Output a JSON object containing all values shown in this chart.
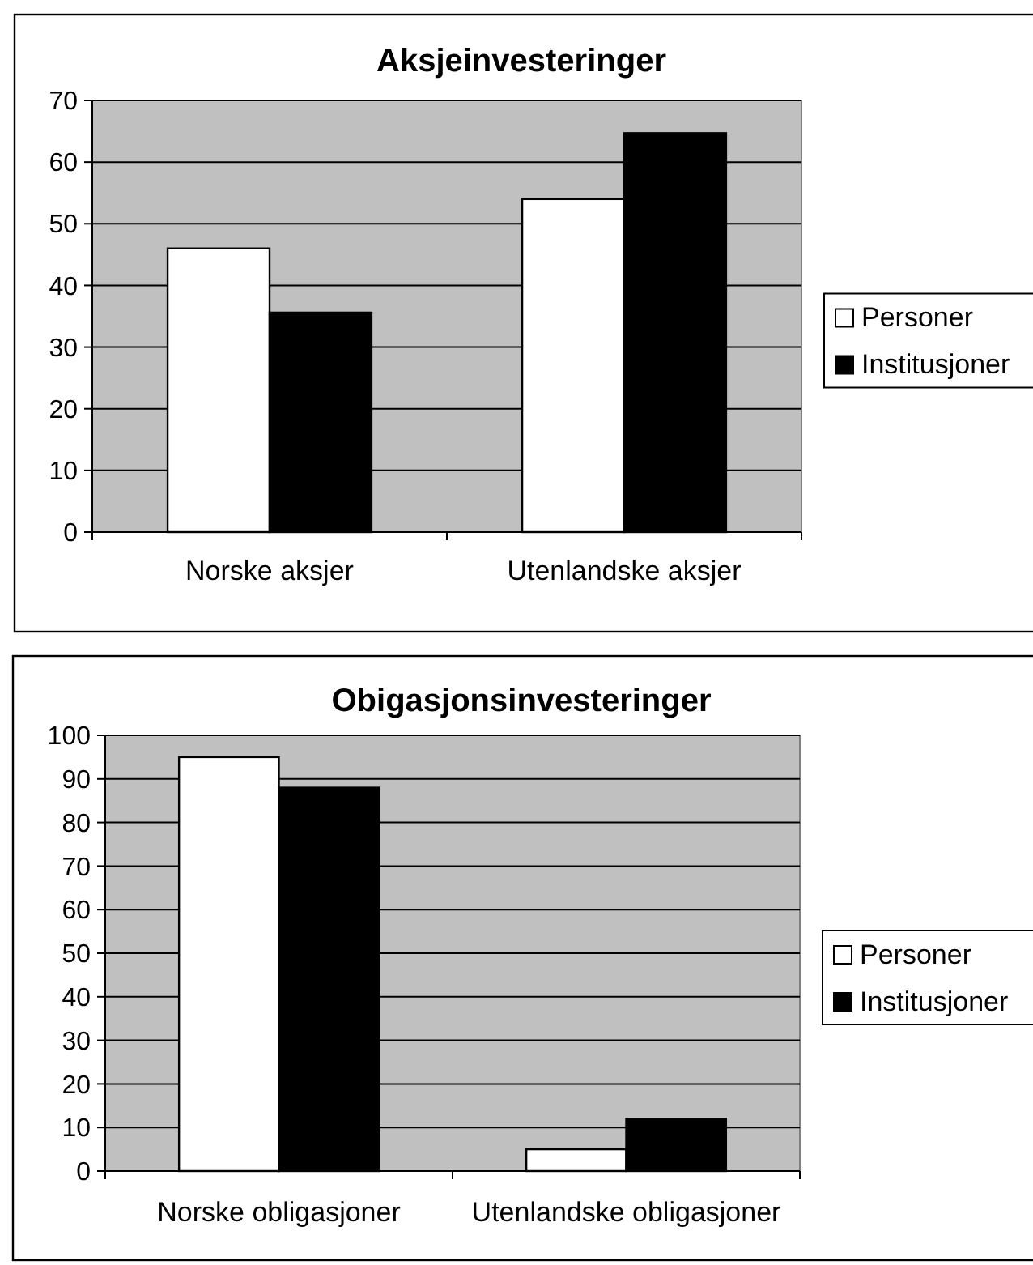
{
  "chart_data": [
    {
      "type": "bar",
      "title": "Aksjeinvesteringer",
      "categories": [
        "Norske aksjer",
        "Utenlandske aksjer"
      ],
      "series": [
        {
          "name": "Personer",
          "color": "#ffffff",
          "values": [
            46,
            54
          ]
        },
        {
          "name": "Institusjoner",
          "color": "#000000",
          "values": [
            35.6,
            64.7
          ]
        }
      ],
      "ylim": [
        0,
        70
      ],
      "yticks": [
        0,
        10,
        20,
        30,
        40,
        50,
        60,
        70
      ],
      "grid": "y",
      "legend": "right"
    },
    {
      "type": "bar",
      "title": "Obigasjonsinvesteringer",
      "categories": [
        "Norske obligasjoner",
        "Utenlandske obligasjoner"
      ],
      "series": [
        {
          "name": "Personer",
          "color": "#ffffff",
          "values": [
            95,
            5
          ]
        },
        {
          "name": "Institusjoner",
          "color": "#000000",
          "values": [
            88,
            12
          ]
        }
      ],
      "ylim": [
        0,
        100
      ],
      "yticks": [
        0,
        10,
        20,
        30,
        40,
        50,
        60,
        70,
        80,
        90,
        100
      ],
      "grid": "y",
      "legend": "right"
    }
  ]
}
